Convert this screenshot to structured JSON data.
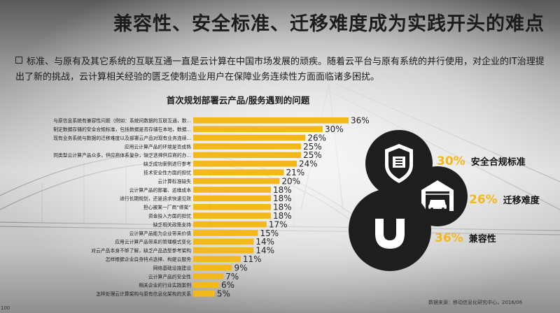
{
  "title": "兼容性、安全标准、迁移难度成为实践开头的难点",
  "intro": "标准、与原有及其它系统的互联互通一直是云计算在中国市场发展的顽疾。随着云平台与原有系统的并行使用，对企业的IT治理提出了新的挑战，云计算相关经验的匮乏使制造业用户在保障业务连续性方面面临诸多困扰。",
  "colors": {
    "accent": "#f3b81a",
    "dark": "#1e1e1e"
  },
  "chart_data": {
    "type": "bar",
    "orientation": "horizontal",
    "title": "首次规划部署云产品/服务遇到的问题",
    "categories": [
      "与原信息系统有兼容性问题（例如：系统间数据的互联互通，数...",
      "制定数据存储的安全合规标准，包括数据是否存储在本地，数据...",
      "现有业务系统与数据的迁移难度以及部署云产品对现有业务连续...",
      "应用云计算产品的环境是否成熟",
      "同类型云计算产品众多，供应商体系复杂，缺乏选择供应商的办...",
      "缺乏成功案例进行参考",
      "技术安全性方面的担忧",
      "云计算标准缺失",
      "云计算产品的部署、运维成本",
      "进行长期规划，还是追求快速见效",
      "担心被某一厂商“绑架”",
      "资金投入方面的担忧",
      "缺乏相关政策支持",
      "云计算产品能为企业带来价值",
      "应用云计算产品带来的管理模式变化",
      "对云产品本身不够了解，缺乏产品选型参考架构",
      "怎样根据企业自身特点选择、构建云服务",
      "网络基础设施建设",
      "云计算产品的安全性",
      "相关企业的行业实践案例",
      "怎样处理云计算架构与原有信息化架构的关系"
    ],
    "values": [
      36,
      30,
      26,
      25,
      25,
      24,
      21,
      20,
      18,
      18,
      18,
      18,
      17,
      15,
      14,
      14,
      11,
      9,
      7,
      6,
      5
    ],
    "value_labels": [
      "36%",
      "30%",
      "26%",
      "25%",
      "25%",
      "24%",
      "21%",
      "20%",
      "18%",
      "18%",
      "18%",
      "18%",
      "17%",
      "15%",
      "14%",
      "14%",
      "11%",
      "9%",
      "7%",
      "6%",
      "5%"
    ],
    "xlim": [
      0,
      36
    ],
    "grid": false,
    "bar_color": "#f3b81a"
  },
  "highlights": [
    {
      "pct": "30%",
      "label": "安全合规标准",
      "icon": "shield-icon"
    },
    {
      "pct": "26%",
      "label": "迁移难度",
      "icon": "garage-car-icon"
    },
    {
      "pct": "36%",
      "label": "兼容性",
      "icon": "magnet-icon"
    }
  ],
  "source": "数据来源：移动信息化研究中心，2016/06",
  "page_number": "100"
}
